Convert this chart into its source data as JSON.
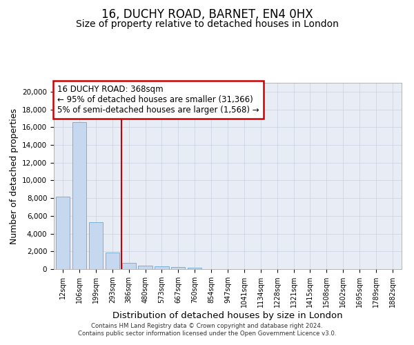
{
  "title1": "16, DUCHY ROAD, BARNET, EN4 0HX",
  "title2": "Size of property relative to detached houses in London",
  "xlabel": "Distribution of detached houses by size in London",
  "ylabel": "Number of detached properties",
  "categories": [
    "12sqm",
    "106sqm",
    "199sqm",
    "293sqm",
    "386sqm",
    "480sqm",
    "573sqm",
    "667sqm",
    "760sqm",
    "854sqm",
    "947sqm",
    "1041sqm",
    "1134sqm",
    "1228sqm",
    "1321sqm",
    "1415sqm",
    "1508sqm",
    "1602sqm",
    "1695sqm",
    "1789sqm",
    "1882sqm"
  ],
  "bar_values": [
    8150,
    16550,
    5300,
    1850,
    700,
    370,
    290,
    220,
    190,
    0,
    0,
    0,
    0,
    0,
    0,
    0,
    0,
    0,
    0,
    0,
    0
  ],
  "bar_color": "#c5d8f0",
  "bar_edge_color": "#7bafd4",
  "vline_x_index": 4,
  "vline_color": "#cc0000",
  "ann_line1": "16 DUCHY ROAD: 368sqm",
  "ann_line2": "← 95% of detached houses are smaller (31,366)",
  "ann_line3": "5% of semi-detached houses are larger (1,568) →",
  "ann_box_color": "#cc0000",
  "ylim": [
    0,
    21000
  ],
  "yticks": [
    0,
    2000,
    4000,
    6000,
    8000,
    10000,
    12000,
    14000,
    16000,
    18000,
    20000
  ],
  "grid_color": "#c8d0e0",
  "bg_color": "#e8edf5",
  "footer": "Contains HM Land Registry data © Crown copyright and database right 2024.\nContains public sector information licensed under the Open Government Licence v3.0.",
  "title1_fontsize": 12,
  "title2_fontsize": 10,
  "xlabel_fontsize": 9.5,
  "ylabel_fontsize": 9
}
